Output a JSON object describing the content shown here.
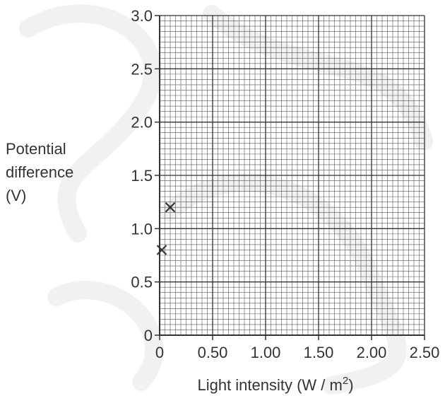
{
  "chart_data": {
    "type": "scatter",
    "xlabel": "Light intensity (W / m²)",
    "xlabel_parts": {
      "main": "Light intensity (W / m",
      "sup": "2",
      "end": ")"
    },
    "ylabel_lines": [
      "Potential",
      "difference",
      "(V)"
    ],
    "xlim": [
      0,
      2.5
    ],
    "ylim": [
      0,
      3.0
    ],
    "x_ticks": [
      0,
      0.5,
      1.0,
      1.5,
      2.0,
      2.5
    ],
    "x_tick_labels": [
      "0",
      "0.50",
      "1.00",
      "1.50",
      "2.00",
      "2.50"
    ],
    "y_ticks": [
      0,
      0.5,
      1.0,
      1.5,
      2.0,
      2.5,
      3.0
    ],
    "y_tick_labels": [
      "0",
      "0.5",
      "1.0",
      "1.5",
      "2.0",
      "2.5",
      "3.0"
    ],
    "grid": true,
    "marker": "x",
    "points": [
      {
        "x": 0.02,
        "y": 0.8
      },
      {
        "x": 0.1,
        "y": 1.2
      }
    ]
  },
  "colors": {
    "grid_major": "#333333",
    "grid_minor": "#555555",
    "marker": "#333333",
    "text": "#333333",
    "watermark": "#f1f1f1"
  }
}
